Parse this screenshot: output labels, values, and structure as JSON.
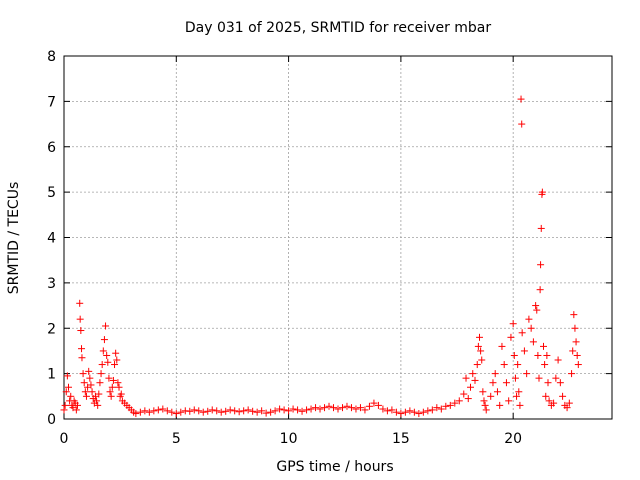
{
  "chart_data": {
    "type": "scatter",
    "title": "Day 031 of 2025, SRMTID for receiver mbar",
    "xlabel": "GPS time / hours",
    "ylabel": "SRMTID / TECUs",
    "xlim": [
      0,
      24.4
    ],
    "ylim": [
      0,
      8
    ],
    "x_ticks": [
      0,
      5,
      10,
      15,
      20
    ],
    "y_ticks": [
      0,
      1,
      2,
      3,
      4,
      5,
      6,
      7,
      8
    ],
    "grid": true,
    "marker": "+",
    "series": [
      {
        "name": "SRMTID",
        "color": "#ff0000",
        "points": [
          [
            0.0,
            0.2
          ],
          [
            0.05,
            0.3
          ],
          [
            0.1,
            0.6
          ],
          [
            0.15,
            0.95
          ],
          [
            0.2,
            0.7
          ],
          [
            0.25,
            0.4
          ],
          [
            0.3,
            0.5
          ],
          [
            0.35,
            0.3
          ],
          [
            0.4,
            0.25
          ],
          [
            0.45,
            0.4
          ],
          [
            0.5,
            0.35
          ],
          [
            0.55,
            0.2
          ],
          [
            0.6,
            0.3
          ],
          [
            0.7,
            2.55
          ],
          [
            0.72,
            2.2
          ],
          [
            0.75,
            1.95
          ],
          [
            0.78,
            1.55
          ],
          [
            0.8,
            1.35
          ],
          [
            0.85,
            1.0
          ],
          [
            0.9,
            0.8
          ],
          [
            0.95,
            0.6
          ],
          [
            1.0,
            0.5
          ],
          [
            1.05,
            0.7
          ],
          [
            1.1,
            1.05
          ],
          [
            1.15,
            0.9
          ],
          [
            1.2,
            0.75
          ],
          [
            1.25,
            0.6
          ],
          [
            1.3,
            0.45
          ],
          [
            1.35,
            0.35
          ],
          [
            1.4,
            0.5
          ],
          [
            1.45,
            0.4
          ],
          [
            1.5,
            0.3
          ],
          [
            1.55,
            0.55
          ],
          [
            1.6,
            0.8
          ],
          [
            1.65,
            1.0
          ],
          [
            1.7,
            1.2
          ],
          [
            1.75,
            1.5
          ],
          [
            1.8,
            1.75
          ],
          [
            1.85,
            2.05
          ],
          [
            1.9,
            1.4
          ],
          [
            1.95,
            1.25
          ],
          [
            2.0,
            0.9
          ],
          [
            2.05,
            0.6
          ],
          [
            2.1,
            0.5
          ],
          [
            2.15,
            0.7
          ],
          [
            2.2,
            0.85
          ],
          [
            2.25,
            1.2
          ],
          [
            2.3,
            1.45
          ],
          [
            2.35,
            1.3
          ],
          [
            2.4,
            0.8
          ],
          [
            2.45,
            0.7
          ],
          [
            2.5,
            0.5
          ],
          [
            2.55,
            0.55
          ],
          [
            2.6,
            0.4
          ],
          [
            2.7,
            0.35
          ],
          [
            2.8,
            0.3
          ],
          [
            2.9,
            0.25
          ],
          [
            3.0,
            0.2
          ],
          [
            3.1,
            0.15
          ],
          [
            3.2,
            0.12
          ],
          [
            3.4,
            0.15
          ],
          [
            3.6,
            0.18
          ],
          [
            3.8,
            0.15
          ],
          [
            4.0,
            0.18
          ],
          [
            4.2,
            0.2
          ],
          [
            4.4,
            0.22
          ],
          [
            4.6,
            0.18
          ],
          [
            4.8,
            0.15
          ],
          [
            5.0,
            0.12
          ],
          [
            5.2,
            0.15
          ],
          [
            5.4,
            0.18
          ],
          [
            5.6,
            0.17
          ],
          [
            5.8,
            0.2
          ],
          [
            6.0,
            0.18
          ],
          [
            6.2,
            0.15
          ],
          [
            6.4,
            0.17
          ],
          [
            6.6,
            0.2
          ],
          [
            6.8,
            0.18
          ],
          [
            7.0,
            0.15
          ],
          [
            7.2,
            0.17
          ],
          [
            7.4,
            0.2
          ],
          [
            7.6,
            0.18
          ],
          [
            7.8,
            0.16
          ],
          [
            8.0,
            0.18
          ],
          [
            8.2,
            0.2
          ],
          [
            8.4,
            0.17
          ],
          [
            8.6,
            0.15
          ],
          [
            8.8,
            0.18
          ],
          [
            9.0,
            0.13
          ],
          [
            9.2,
            0.15
          ],
          [
            9.4,
            0.18
          ],
          [
            9.6,
            0.22
          ],
          [
            9.8,
            0.2
          ],
          [
            10.0,
            0.18
          ],
          [
            10.2,
            0.22
          ],
          [
            10.4,
            0.2
          ],
          [
            10.6,
            0.17
          ],
          [
            10.8,
            0.2
          ],
          [
            11.0,
            0.22
          ],
          [
            11.2,
            0.25
          ],
          [
            11.4,
            0.22
          ],
          [
            11.6,
            0.25
          ],
          [
            11.8,
            0.28
          ],
          [
            12.0,
            0.25
          ],
          [
            12.2,
            0.22
          ],
          [
            12.4,
            0.25
          ],
          [
            12.6,
            0.28
          ],
          [
            12.8,
            0.25
          ],
          [
            13.0,
            0.22
          ],
          [
            13.2,
            0.25
          ],
          [
            13.4,
            0.2
          ],
          [
            13.6,
            0.28
          ],
          [
            13.8,
            0.35
          ],
          [
            14.0,
            0.3
          ],
          [
            14.2,
            0.22
          ],
          [
            14.4,
            0.18
          ],
          [
            14.6,
            0.2
          ],
          [
            14.8,
            0.15
          ],
          [
            15.0,
            0.12
          ],
          [
            15.2,
            0.15
          ],
          [
            15.4,
            0.18
          ],
          [
            15.6,
            0.15
          ],
          [
            15.8,
            0.12
          ],
          [
            16.0,
            0.15
          ],
          [
            16.2,
            0.18
          ],
          [
            16.4,
            0.2
          ],
          [
            16.6,
            0.25
          ],
          [
            16.8,
            0.22
          ],
          [
            17.0,
            0.28
          ],
          [
            17.2,
            0.3
          ],
          [
            17.4,
            0.35
          ],
          [
            17.6,
            0.4
          ],
          [
            17.8,
            0.55
          ],
          [
            17.9,
            0.9
          ],
          [
            18.0,
            0.45
          ],
          [
            18.1,
            0.7
          ],
          [
            18.2,
            1.0
          ],
          [
            18.3,
            0.85
          ],
          [
            18.4,
            1.2
          ],
          [
            18.45,
            1.6
          ],
          [
            18.5,
            1.8
          ],
          [
            18.55,
            1.5
          ],
          [
            18.6,
            1.3
          ],
          [
            18.65,
            0.6
          ],
          [
            18.7,
            0.4
          ],
          [
            18.75,
            0.3
          ],
          [
            18.8,
            0.2
          ],
          [
            19.0,
            0.5
          ],
          [
            19.1,
            0.8
          ],
          [
            19.2,
            1.0
          ],
          [
            19.3,
            0.6
          ],
          [
            19.4,
            0.3
          ],
          [
            19.5,
            1.6
          ],
          [
            19.6,
            1.2
          ],
          [
            19.7,
            0.8
          ],
          [
            19.8,
            0.4
          ],
          [
            19.9,
            1.8
          ],
          [
            20.0,
            2.1
          ],
          [
            20.05,
            1.4
          ],
          [
            20.1,
            0.9
          ],
          [
            20.15,
            0.5
          ],
          [
            20.2,
            1.2
          ],
          [
            20.25,
            0.6
          ],
          [
            20.3,
            0.3
          ],
          [
            20.35,
            7.05
          ],
          [
            20.38,
            6.5
          ],
          [
            20.4,
            1.9
          ],
          [
            20.5,
            1.5
          ],
          [
            20.6,
            1.0
          ],
          [
            20.7,
            2.2
          ],
          [
            20.8,
            2.0
          ],
          [
            20.9,
            1.7
          ],
          [
            21.0,
            2.5
          ],
          [
            21.05,
            2.4
          ],
          [
            21.1,
            1.4
          ],
          [
            21.15,
            0.9
          ],
          [
            21.2,
            2.85
          ],
          [
            21.22,
            3.4
          ],
          [
            21.25,
            4.2
          ],
          [
            21.28,
            4.95
          ],
          [
            21.3,
            5.0
          ],
          [
            21.35,
            1.6
          ],
          [
            21.4,
            1.2
          ],
          [
            21.45,
            0.5
          ],
          [
            21.5,
            1.4
          ],
          [
            21.55,
            0.8
          ],
          [
            21.6,
            0.4
          ],
          [
            21.7,
            0.3
          ],
          [
            21.8,
            0.35
          ],
          [
            21.9,
            0.9
          ],
          [
            22.0,
            1.3
          ],
          [
            22.1,
            0.8
          ],
          [
            22.2,
            0.5
          ],
          [
            22.3,
            0.3
          ],
          [
            22.4,
            0.25
          ],
          [
            22.5,
            0.35
          ],
          [
            22.6,
            1.0
          ],
          [
            22.65,
            1.5
          ],
          [
            22.7,
            2.3
          ],
          [
            22.75,
            2.0
          ],
          [
            22.8,
            1.7
          ],
          [
            22.85,
            1.4
          ],
          [
            22.9,
            1.2
          ]
        ]
      }
    ]
  }
}
